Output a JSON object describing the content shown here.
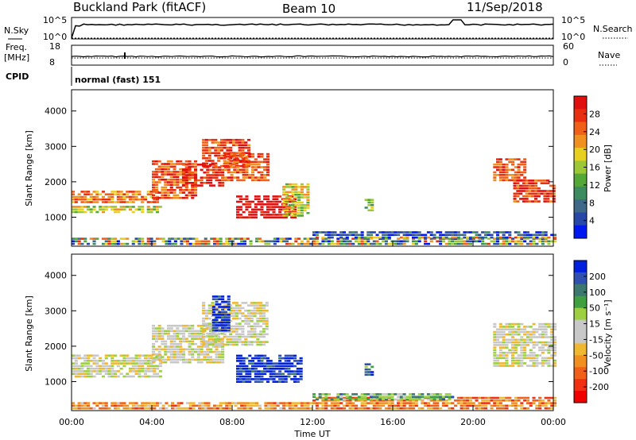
{
  "header": {
    "site_title": "Buckland Park (fitACF)",
    "beam": "Beam 10",
    "date": "11/Sep/2018"
  },
  "sky_panel": {
    "left_label": "N.Sky",
    "right_label": "N.Search",
    "left_top_tick": "10^5",
    "left_bottom_tick": "10^0",
    "right_top_tick": "10^5",
    "right_bottom_tick": "10^0"
  },
  "freq_panel": {
    "left_label_1": "Freq.",
    "left_label_2": "[MHz]",
    "left_top_tick": "18",
    "left_bottom_tick": "8",
    "right_top_tick": "60",
    "right_bottom_tick": "0",
    "right_label": "Nave"
  },
  "cpid_panel": {
    "left_label": "CPID",
    "mode_text": "normal (fast) 151"
  },
  "x_axis": {
    "label": "Time UT",
    "ticks": [
      "00:00",
      "04:00",
      "08:00",
      "12:00",
      "16:00",
      "20:00",
      "00:00"
    ]
  },
  "chart_data": [
    {
      "type": "heatmap",
      "title": "",
      "xlabel": "Time UT",
      "ylabel": "Slant Range [km]",
      "x_range_hours": [
        0,
        24
      ],
      "y_range_km": [
        180,
        4600
      ],
      "y_ticks": [
        1000,
        2000,
        3000,
        4000
      ],
      "colorbar": {
        "label": "Power [dB]",
        "ticks": [
          "28",
          "24",
          "20",
          "16",
          "12",
          "8",
          "4"
        ],
        "colors": [
          "#0018f0",
          "#2848a8",
          "#406888",
          "#3c8c60",
          "#54a838",
          "#9cc838",
          "#e8d020",
          "#f09020",
          "#f06018",
          "#e83010",
          "#e01010"
        ]
      },
      "regions": [
        {
          "t0": 0.0,
          "t1": 4.2,
          "r0": 1380,
          "r1": 1700,
          "v": 0.75
        },
        {
          "t0": 0.0,
          "t1": 4.5,
          "r0": 1100,
          "r1": 1300,
          "v": 0.55
        },
        {
          "t0": 4.0,
          "t1": 6.2,
          "r0": 1500,
          "r1": 2600,
          "v": 0.8
        },
        {
          "t0": 5.5,
          "t1": 7.6,
          "r0": 1850,
          "r1": 2500,
          "v": 0.9
        },
        {
          "t0": 6.5,
          "t1": 8.8,
          "r0": 2400,
          "r1": 3200,
          "v": 0.85
        },
        {
          "t0": 7.6,
          "t1": 9.8,
          "r0": 2000,
          "r1": 2800,
          "v": 0.8
        },
        {
          "t0": 8.2,
          "t1": 11.2,
          "r0": 950,
          "r1": 1600,
          "v": 1.0
        },
        {
          "t0": 10.5,
          "t1": 11.8,
          "r0": 1000,
          "r1": 1900,
          "v": 0.55
        },
        {
          "t0": 14.6,
          "t1": 15.0,
          "r0": 1150,
          "r1": 1450,
          "v": 0.45
        },
        {
          "t0": 21.0,
          "t1": 22.5,
          "r0": 2000,
          "r1": 2600,
          "v": 0.8
        },
        {
          "t0": 22.0,
          "t1": 24.0,
          "r0": 1400,
          "r1": 2000,
          "v": 0.85
        },
        {
          "t0": 0.0,
          "t1": 24.0,
          "r0": 200,
          "r1": 380,
          "v": 0.35
        },
        {
          "t0": 12.0,
          "t1": 24.0,
          "r0": 380,
          "r1": 600,
          "v": 0.15
        }
      ]
    },
    {
      "type": "heatmap",
      "title": "",
      "xlabel": "Time UT",
      "ylabel": "Slant Range [km]",
      "x_range_hours": [
        0,
        24
      ],
      "y_range_km": [
        180,
        4600
      ],
      "y_ticks": [
        1000,
        2000,
        3000,
        4000
      ],
      "colorbar": {
        "label": "Velocity [m s⁻¹]",
        "ticks": [
          "200",
          "100",
          "50",
          "15",
          "-15",
          "-50",
          "-100",
          "-200"
        ],
        "colors": [
          "#f00000",
          "#f03010",
          "#f06018",
          "#f09020",
          "#f0b830",
          "#c8c8c8",
          "#c8c8c8",
          "#9cd040",
          "#40a040",
          "#3c7870",
          "#3050b0",
          "#0020e0"
        ]
      },
      "regions": [
        {
          "t0": 0.0,
          "t1": 4.5,
          "r0": 1100,
          "r1": 1700,
          "v": 0.5
        },
        {
          "t0": 4.0,
          "t1": 7.6,
          "r0": 1500,
          "r1": 2600,
          "v": 0.5
        },
        {
          "t0": 6.5,
          "t1": 9.8,
          "r0": 2000,
          "r1": 3200,
          "v": 0.5
        },
        {
          "t0": 7.0,
          "t1": 7.8,
          "r0": 2400,
          "r1": 3400,
          "v": 0.95
        },
        {
          "t0": 8.2,
          "t1": 11.5,
          "r0": 950,
          "r1": 1750,
          "v": 0.95
        },
        {
          "t0": 14.6,
          "t1": 15.0,
          "r0": 1150,
          "r1": 1450,
          "v": 0.8
        },
        {
          "t0": 21.0,
          "t1": 24.0,
          "r0": 1400,
          "r1": 2600,
          "v": 0.5
        },
        {
          "t0": 0.0,
          "t1": 12.0,
          "r0": 200,
          "r1": 420,
          "v": 0.3
        },
        {
          "t0": 12.0,
          "t1": 24.0,
          "r0": 200,
          "r1": 550,
          "v": 0.25
        },
        {
          "t0": 12.0,
          "t1": 19.0,
          "r0": 450,
          "r1": 600,
          "v": 0.7
        }
      ]
    }
  ]
}
